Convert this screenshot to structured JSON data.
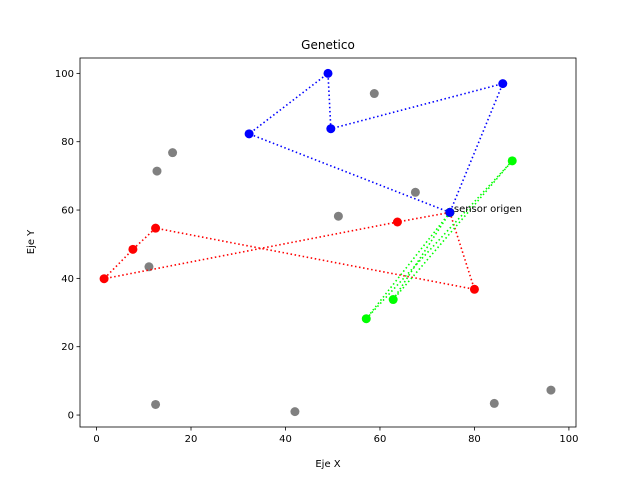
{
  "chart_data": {
    "type": "scatter",
    "title": "Genetico",
    "xlabel": "Eje X",
    "ylabel": "Eje Y",
    "xlim": [
      -3.5,
      101.5
    ],
    "ylim": [
      -3.5,
      104.5
    ],
    "xticks": [
      0,
      20,
      40,
      60,
      80,
      100
    ],
    "yticks": [
      0,
      20,
      40,
      60,
      80,
      100
    ],
    "grid": false,
    "origin": {
      "x": 74.8,
      "y": 59.3
    },
    "annotation": {
      "text": "sensor origen",
      "x": 74.8,
      "y": 59.3
    },
    "unassigned_points": {
      "color": "#808080",
      "points": [
        [
          12.5,
          3.1
        ],
        [
          42.0,
          1.0
        ],
        [
          84.2,
          3.4
        ],
        [
          96.2,
          7.3
        ],
        [
          11.1,
          43.4
        ],
        [
          51.2,
          58.2
        ],
        [
          67.5,
          65.2
        ],
        [
          12.8,
          71.4
        ],
        [
          16.1,
          76.8
        ],
        [
          58.8,
          94.1
        ]
      ]
    },
    "routes": [
      {
        "color": "#0000ff",
        "points": [
          [
            74.8,
            59.3
          ],
          [
            32.3,
            82.3
          ],
          [
            49.0,
            100.0
          ],
          [
            49.6,
            83.8
          ],
          [
            86.0,
            97.0
          ],
          [
            74.8,
            59.3
          ]
        ]
      },
      {
        "color": "#ff0000",
        "points": [
          [
            74.8,
            59.3
          ],
          [
            63.7,
            56.5
          ],
          [
            1.6,
            39.9
          ],
          [
            7.7,
            48.5
          ],
          [
            12.5,
            54.7
          ],
          [
            80.0,
            36.8
          ],
          [
            74.8,
            59.3
          ]
        ]
      },
      {
        "color": "#00ff00",
        "points": [
          [
            74.8,
            59.3
          ],
          [
            57.1,
            28.2
          ],
          [
            88.0,
            74.4
          ],
          [
            62.8,
            33.8
          ],
          [
            74.8,
            59.3
          ]
        ]
      }
    ]
  }
}
